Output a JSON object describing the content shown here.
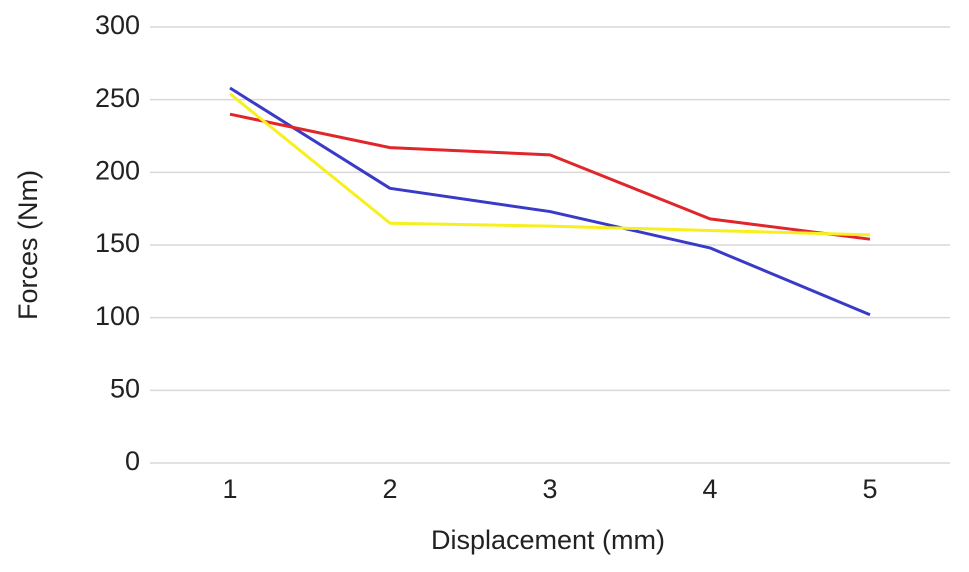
{
  "chart_data": {
    "type": "line",
    "x_label": "Displacement (mm)",
    "y_label": "Forces (Nm)",
    "categories": [
      "1",
      "2",
      "3",
      "4",
      "5"
    ],
    "series": [
      {
        "color": "#3a3ac8",
        "values": [
          258,
          189,
          173,
          148,
          102
        ]
      },
      {
        "color": "#e0262b",
        "values": [
          240,
          217,
          212,
          168,
          154
        ]
      },
      {
        "color": "#f7ef1e",
        "values": [
          254,
          165,
          163,
          160,
          157
        ]
      }
    ],
    "ylim": [
      0,
      300
    ],
    "yticks": [
      0,
      50,
      100,
      150,
      200,
      250,
      300
    ],
    "grid": true
  }
}
